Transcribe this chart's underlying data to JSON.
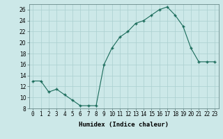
{
  "x": [
    0,
    1,
    2,
    3,
    4,
    5,
    6,
    7,
    8,
    9,
    10,
    11,
    12,
    13,
    14,
    15,
    16,
    17,
    18,
    19,
    20,
    21,
    22,
    23
  ],
  "y": [
    13,
    13,
    11,
    11.5,
    10.5,
    9.5,
    8.5,
    8.5,
    8.5,
    16,
    19,
    21,
    22,
    23.5,
    24,
    25,
    26,
    26.5,
    25,
    23,
    19,
    16.5,
    16.5,
    16.5
  ],
  "xlabel": "Humidex (Indice chaleur)",
  "xlim": [
    -0.5,
    23.5
  ],
  "ylim": [
    8,
    27
  ],
  "yticks": [
    8,
    10,
    12,
    14,
    16,
    18,
    20,
    22,
    24,
    26
  ],
  "xticks": [
    0,
    1,
    2,
    3,
    4,
    5,
    6,
    7,
    8,
    9,
    10,
    11,
    12,
    13,
    14,
    15,
    16,
    17,
    18,
    19,
    20,
    21,
    22,
    23
  ],
  "xtick_labels": [
    "0",
    "1",
    "2",
    "3",
    "4",
    "5",
    "6",
    "7",
    "8",
    "9",
    "10",
    "11",
    "12",
    "13",
    "14",
    "15",
    "16",
    "17",
    "18",
    "19",
    "20",
    "21",
    "22",
    "23"
  ],
  "line_color": "#1a6b5a",
  "marker_color": "#1a6b5a",
  "bg_color": "#cce8e8",
  "grid_color": "#aacfcf",
  "label_fontsize": 6.5,
  "tick_fontsize": 5.5
}
